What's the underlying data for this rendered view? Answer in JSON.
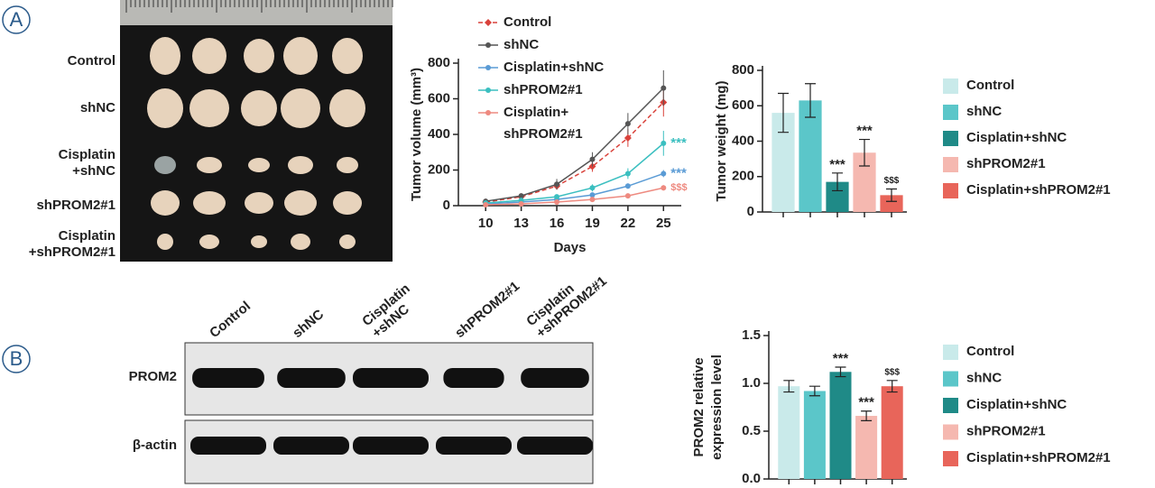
{
  "panel_labels": [
    "A",
    "B"
  ],
  "photo": {
    "row_labels": [
      "Control",
      "shNC",
      [
        "Cisplatin",
        "+shNC"
      ],
      "shPROM2#1",
      [
        "Cisplatin",
        "+shPROM2#1"
      ]
    ]
  },
  "blot": {
    "column_labels": [
      "Control",
      "shNC",
      [
        "Cisplatin",
        "+shNC"
      ],
      "shPROM2#1",
      [
        "Cisplatin",
        "+shPROM2#1"
      ]
    ],
    "row_labels": [
      "PROM2",
      "β-actin"
    ]
  },
  "chart_data": [
    {
      "type": "line",
      "ylabel": "Tumor volume (mm³)",
      "xlabel": "Days",
      "x": [
        10,
        13,
        16,
        19,
        22,
        25
      ],
      "xlim": [
        7.7,
        26.5
      ],
      "xticks": [
        10,
        13,
        16,
        19,
        22,
        25
      ],
      "ylim": [
        0,
        800
      ],
      "yticks": [
        0,
        200,
        400,
        600,
        800
      ],
      "series": [
        {
          "name": "Control",
          "color": "#d9413a",
          "dashed": true,
          "marker": "diamond",
          "values": [
            20,
            50,
            110,
            220,
            380,
            580
          ],
          "errors": [
            5,
            10,
            20,
            30,
            50,
            80
          ]
        },
        {
          "name": "shNC",
          "color": "#555555",
          "marker": "circle",
          "values": [
            25,
            55,
            120,
            260,
            460,
            660
          ],
          "errors": [
            5,
            10,
            30,
            40,
            60,
            100
          ]
        },
        {
          "name": "Cisplatin+shNC",
          "color": "#5a9bd5",
          "marker": "circle",
          "values": [
            10,
            20,
            35,
            60,
            110,
            180
          ],
          "errors": [
            3,
            5,
            8,
            10,
            15,
            20
          ],
          "annotation": "***"
        },
        {
          "name": "shPROM2#1",
          "color": "#3bbfc0",
          "marker": "circle",
          "values": [
            15,
            30,
            50,
            100,
            180,
            350
          ],
          "errors": [
            5,
            8,
            10,
            20,
            30,
            70
          ],
          "annotation": "***"
        },
        {
          "name": [
            "Cisplatin+",
            "shPROM2#1"
          ],
          "color": "#ee8a80",
          "marker": "circle",
          "values": [
            5,
            10,
            20,
            35,
            55,
            100
          ],
          "errors": [
            3,
            4,
            5,
            8,
            10,
            15
          ],
          "annotation": "$$$"
        }
      ]
    },
    {
      "type": "bar",
      "ylabel": "Tumor weight (mg)",
      "categories": [
        "Control",
        "shNC",
        "Cisplatin+shNC",
        "shPROM2#1",
        "Cisplatin+shPROM2#1"
      ],
      "values": [
        560,
        630,
        170,
        335,
        95
      ],
      "errors": [
        110,
        95,
        50,
        75,
        35
      ],
      "annotations": [
        null,
        null,
        "***",
        "***",
        "$$$"
      ],
      "colors": [
        "#c9eaea",
        "#5bc6c9",
        "#1f8a87",
        "#f5b8b0",
        "#e8655a"
      ],
      "ylim": [
        0,
        800
      ],
      "yticks": [
        0,
        200,
        400,
        600,
        800
      ]
    },
    {
      "type": "bar",
      "ylabel": [
        "PROM2 relative",
        "expression level"
      ],
      "categories": [
        "Control",
        "shNC",
        "Cisplatin+shNC",
        "shPROM2#1",
        "Cisplatin+shPROM2#1"
      ],
      "values": [
        0.97,
        0.92,
        1.12,
        0.66,
        0.97
      ],
      "errors": [
        0.06,
        0.05,
        0.05,
        0.05,
        0.06
      ],
      "annotations": [
        null,
        null,
        "***",
        "***",
        "$$$"
      ],
      "colors": [
        "#c9eaea",
        "#5bc6c9",
        "#1f8a87",
        "#f5b8b0",
        "#e8655a"
      ],
      "ylim": [
        0,
        1.5
      ],
      "yticks": [
        {
          "value": 0,
          "label": "0.0"
        },
        0.5,
        {
          "value": 1,
          "label": "1.0"
        },
        1.5
      ]
    }
  ]
}
